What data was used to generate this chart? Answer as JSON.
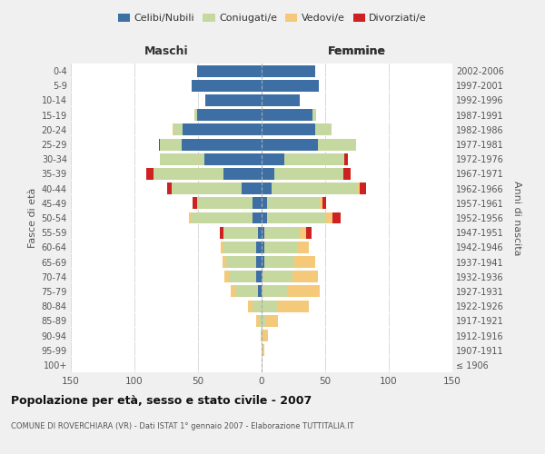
{
  "age_groups": [
    "100+",
    "95-99",
    "90-94",
    "85-89",
    "80-84",
    "75-79",
    "70-74",
    "65-69",
    "60-64",
    "55-59",
    "50-54",
    "45-49",
    "40-44",
    "35-39",
    "30-34",
    "25-29",
    "20-24",
    "15-19",
    "10-14",
    "5-9",
    "0-4"
  ],
  "birth_years": [
    "≤ 1906",
    "1907-1911",
    "1912-1916",
    "1917-1921",
    "1922-1926",
    "1927-1931",
    "1932-1936",
    "1937-1941",
    "1942-1946",
    "1947-1951",
    "1952-1956",
    "1957-1961",
    "1962-1966",
    "1967-1971",
    "1972-1976",
    "1977-1981",
    "1982-1986",
    "1987-1991",
    "1992-1996",
    "1997-2001",
    "2002-2006"
  ],
  "maschi": {
    "celibi": [
      0,
      0,
      0,
      0,
      0,
      3,
      4,
      4,
      4,
      3,
      7,
      7,
      16,
      30,
      45,
      63,
      62,
      51,
      44,
      55,
      51
    ],
    "coniugati": [
      0,
      0,
      1,
      2,
      7,
      17,
      22,
      24,
      26,
      27,
      49,
      44,
      55,
      55,
      35,
      17,
      7,
      2,
      0,
      0,
      0
    ],
    "vedovi": [
      0,
      0,
      0,
      2,
      4,
      4,
      3,
      3,
      2,
      0,
      1,
      0,
      0,
      0,
      0,
      0,
      1,
      0,
      0,
      0,
      0
    ],
    "divorziati": [
      0,
      0,
      0,
      0,
      0,
      0,
      0,
      0,
      0,
      3,
      0,
      3,
      3,
      6,
      0,
      1,
      0,
      0,
      0,
      0,
      0
    ]
  },
  "femmine": {
    "nubili": [
      0,
      0,
      0,
      0,
      0,
      0,
      1,
      2,
      2,
      2,
      4,
      4,
      8,
      10,
      18,
      44,
      42,
      40,
      30,
      45,
      42
    ],
    "coniugate": [
      0,
      1,
      1,
      3,
      12,
      20,
      23,
      24,
      26,
      28,
      47,
      42,
      68,
      54,
      47,
      30,
      13,
      3,
      0,
      0,
      0
    ],
    "vedove": [
      0,
      1,
      4,
      10,
      25,
      26,
      20,
      16,
      9,
      5,
      5,
      2,
      1,
      0,
      0,
      0,
      0,
      0,
      0,
      0,
      0
    ],
    "divorziate": [
      0,
      0,
      0,
      0,
      0,
      0,
      0,
      0,
      0,
      4,
      6,
      3,
      5,
      6,
      3,
      0,
      0,
      0,
      0,
      0,
      0
    ]
  },
  "colors": {
    "celibi": "#3d6fa5",
    "coniugati": "#c5d8a0",
    "vedovi": "#f5c97a",
    "divorziati": "#cc2222"
  },
  "title": "Popolazione per età, sesso e stato civile - 2007",
  "subtitle": "COMUNE DI ROVERCHIARA (VR) - Dati ISTAT 1° gennaio 2007 - Elaborazione TUTTITALIA.IT",
  "xlabel_left": "Maschi",
  "xlabel_right": "Femmine",
  "ylabel_left": "Fasce di età",
  "ylabel_right": "Anni di nascita",
  "xlim": 150,
  "background_color": "#f0f0f0",
  "plot_bg": "#ffffff",
  "legend_labels": [
    "Celibi/Nubili",
    "Coniugati/e",
    "Vedovi/e",
    "Divorziati/e"
  ]
}
